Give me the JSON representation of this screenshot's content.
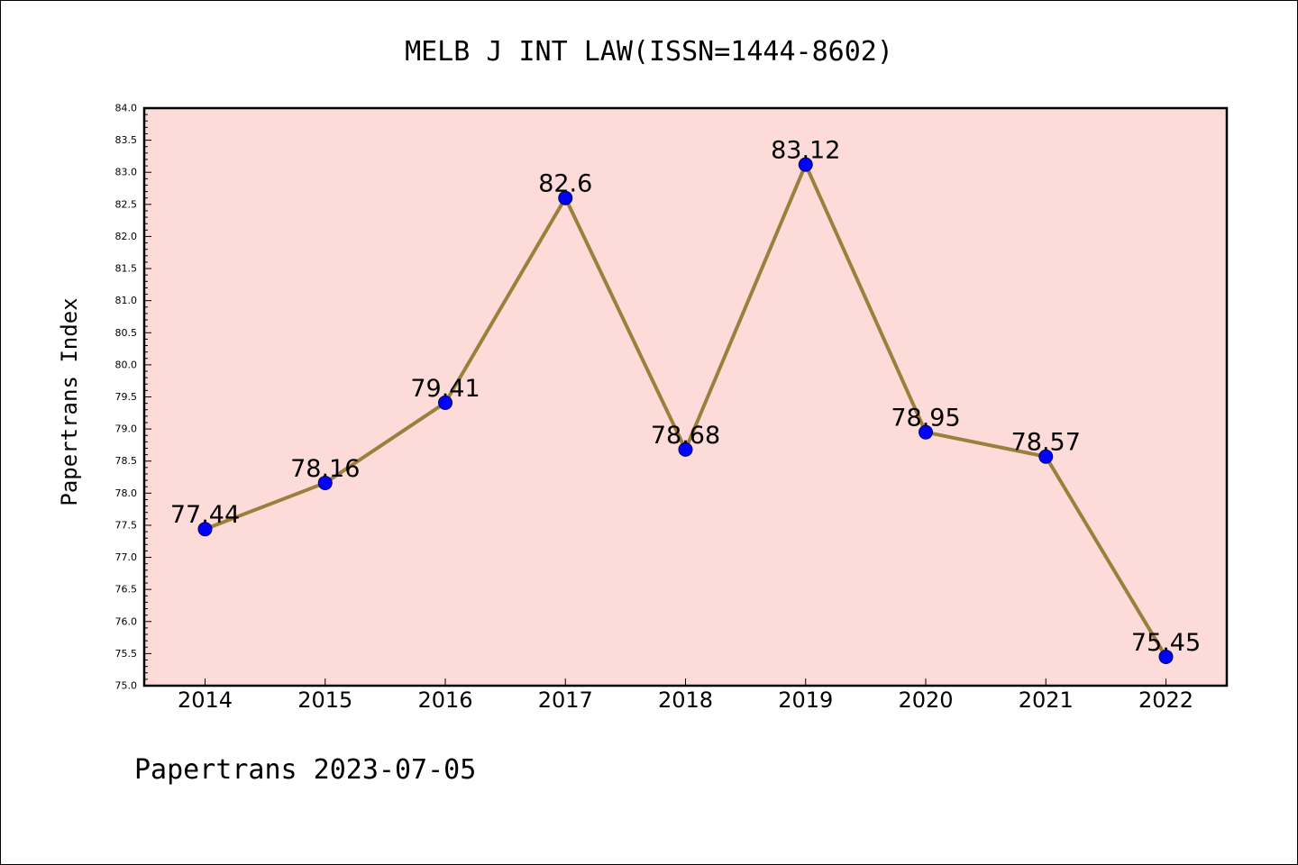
{
  "footer": "Papertrans 2023-07-05",
  "chart_data": {
    "type": "line",
    "title": "MELB J INT LAW(ISSN=1444-8602)",
    "xlabel": "",
    "ylabel": "Papertrans Index",
    "categories": [
      "2014",
      "2015",
      "2016",
      "2017",
      "2018",
      "2019",
      "2020",
      "2021",
      "2022"
    ],
    "values": [
      77.44,
      78.16,
      79.41,
      82.6,
      78.68,
      83.12,
      78.95,
      78.57,
      75.45
    ],
    "data_labels": [
      "77.44",
      "78.16",
      "79.41",
      "82.6",
      "78.68",
      "83.12",
      "78.95",
      "78.57",
      "75.45"
    ],
    "ylim": [
      75.0,
      84.0
    ],
    "yticks": [
      "75.0",
      "75.5",
      "76.0",
      "76.5",
      "77.0",
      "77.5",
      "78.0",
      "78.5",
      "79.0",
      "79.5",
      "80.0",
      "80.5",
      "81.0",
      "81.5",
      "82.0",
      "82.5",
      "83.0",
      "83.5",
      "84.0"
    ],
    "grid": false,
    "legend": "none",
    "colors": {
      "plot_background": "#fddbd8",
      "line": "#9b7f3c",
      "marker_fill": "#0000ff",
      "marker_edge": "#00005a",
      "axis": "#000000",
      "text": "#000000"
    }
  }
}
